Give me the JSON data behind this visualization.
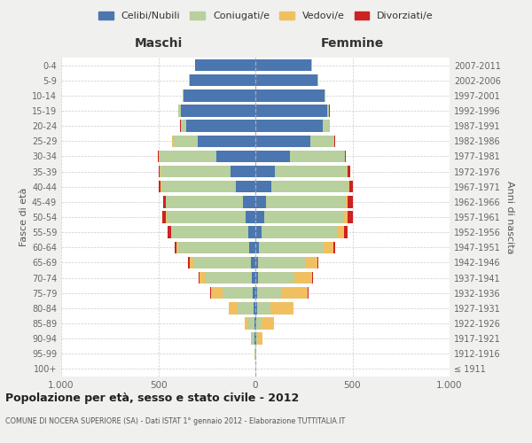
{
  "age_groups": [
    "100+",
    "95-99",
    "90-94",
    "85-89",
    "80-84",
    "75-79",
    "70-74",
    "65-69",
    "60-64",
    "55-59",
    "50-54",
    "45-49",
    "40-44",
    "35-39",
    "30-34",
    "25-29",
    "20-24",
    "15-19",
    "10-14",
    "5-9",
    "0-4"
  ],
  "birth_years": [
    "≤ 1911",
    "1912-1916",
    "1917-1921",
    "1922-1926",
    "1927-1931",
    "1932-1936",
    "1937-1941",
    "1942-1946",
    "1947-1951",
    "1952-1956",
    "1957-1961",
    "1962-1966",
    "1967-1971",
    "1972-1976",
    "1977-1981",
    "1982-1986",
    "1987-1991",
    "1992-1996",
    "1997-2001",
    "2002-2006",
    "2007-2011"
  ],
  "maschi_celibe": [
    1,
    2,
    4,
    5,
    10,
    15,
    20,
    25,
    30,
    35,
    50,
    65,
    100,
    130,
    200,
    295,
    355,
    385,
    370,
    340,
    310
  ],
  "maschi_coniugato": [
    0,
    2,
    15,
    30,
    80,
    155,
    235,
    295,
    365,
    395,
    405,
    395,
    385,
    360,
    295,
    130,
    28,
    10,
    5,
    3,
    2
  ],
  "maschi_vedovo": [
    0,
    1,
    5,
    20,
    45,
    60,
    32,
    20,
    10,
    5,
    4,
    3,
    2,
    2,
    2,
    2,
    2,
    1,
    1,
    0,
    0
  ],
  "maschi_divorziato": [
    0,
    0,
    0,
    0,
    0,
    2,
    5,
    5,
    10,
    15,
    20,
    12,
    12,
    8,
    5,
    3,
    2,
    1,
    0,
    0,
    0
  ],
  "femmine_nubile": [
    1,
    2,
    3,
    5,
    8,
    10,
    12,
    15,
    20,
    30,
    45,
    55,
    80,
    100,
    180,
    285,
    345,
    370,
    355,
    320,
    288
  ],
  "femmine_coniugata": [
    0,
    2,
    10,
    28,
    68,
    128,
    190,
    242,
    332,
    390,
    412,
    410,
    398,
    370,
    280,
    120,
    35,
    10,
    5,
    2,
    2
  ],
  "femmine_vedova": [
    1,
    2,
    22,
    62,
    120,
    132,
    92,
    62,
    50,
    35,
    20,
    12,
    8,
    5,
    3,
    2,
    2,
    1,
    1,
    0,
    0
  ],
  "femmine_divorziata": [
    0,
    0,
    0,
    0,
    0,
    2,
    5,
    5,
    10,
    20,
    25,
    25,
    18,
    12,
    5,
    3,
    2,
    1,
    0,
    0,
    0
  ],
  "colors": {
    "celibe": "#4b76b0",
    "coniugato": "#b8cf9e",
    "vedovo": "#f0c060",
    "divorziato": "#cc2222"
  },
  "xlim": 1000,
  "title": "Popolazione per età, sesso e stato civile - 2012",
  "subtitle": "COMUNE DI NOCERA SUPERIORE (SA) - Dati ISTAT 1° gennaio 2012 - Elaborazione TUTTITALIA.IT",
  "xlabel_left": "Maschi",
  "xlabel_right": "Femmine",
  "ylabel_left": "Fasce di età",
  "ylabel_right": "Anni di nascita",
  "legend_labels": [
    "Celibi/Nubili",
    "Coniugati/e",
    "Vedovi/e",
    "Divorziati/e"
  ],
  "bg_color": "#f0f0ee",
  "plot_bg_color": "#ffffff",
  "grid_color": "#cccccc"
}
